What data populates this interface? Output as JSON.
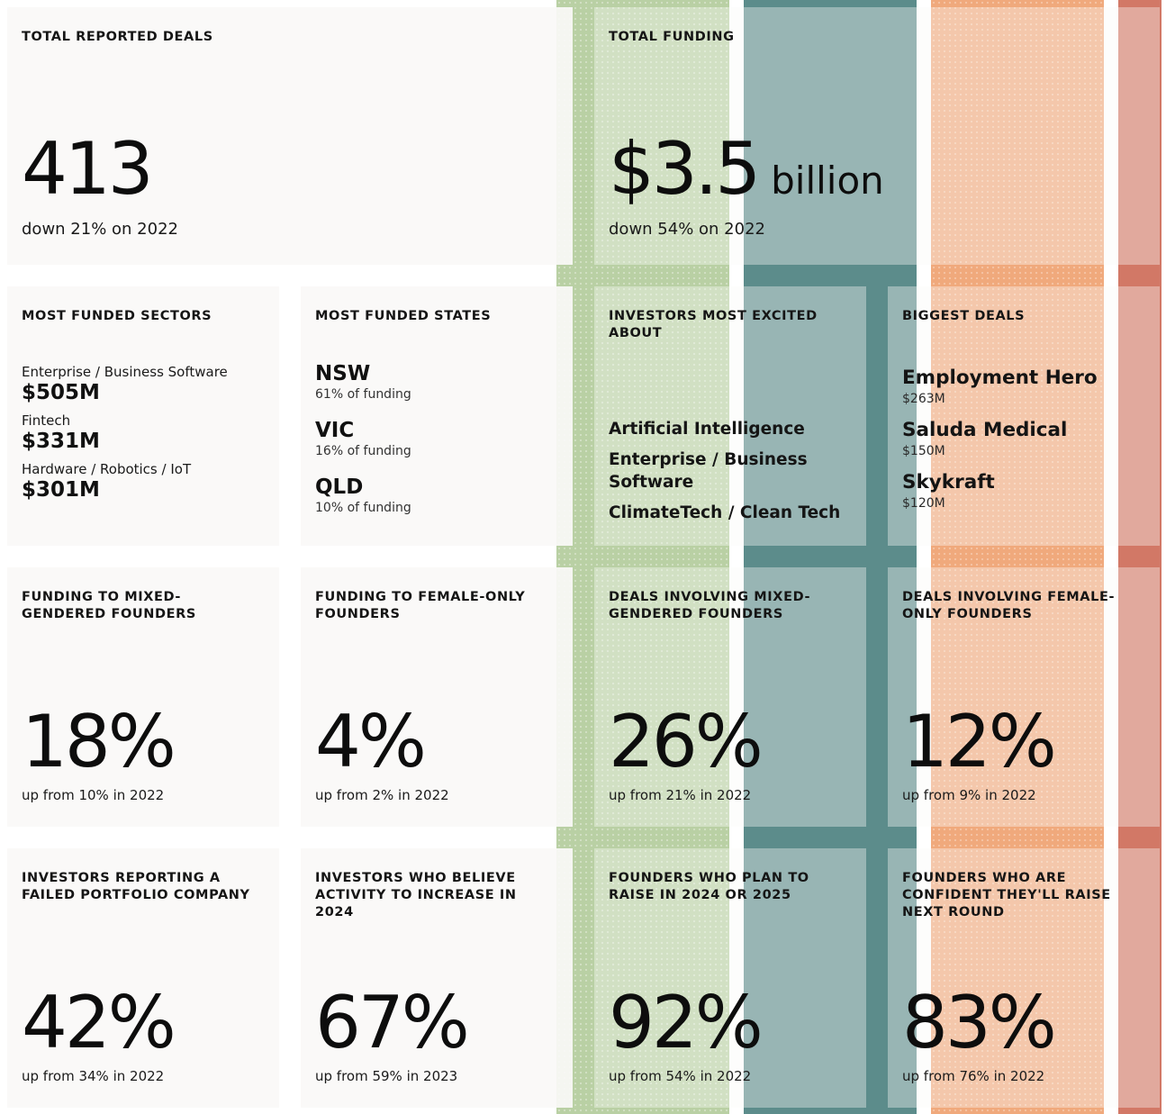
{
  "colors": {
    "stripe_green": "#b9d0a4",
    "stripe_teal": "#5c8c8b",
    "stripe_orange": "#f0a97c",
    "stripe_red": "#d27866",
    "card_background": "#faf9f7"
  },
  "total_deals": {
    "label": "TOTAL REPORTED DEALS",
    "value": "413",
    "change": "down 21% on 2022"
  },
  "total_funding": {
    "label": "TOTAL FUNDING",
    "value": "$3.5",
    "unit": "billion",
    "change": "down 54% on 2022"
  },
  "sectors": {
    "label": "MOST FUNDED SECTORS",
    "items": [
      {
        "name": "Enterprise / Business Software",
        "amount": "$505M"
      },
      {
        "name": "Fintech",
        "amount": "$331M"
      },
      {
        "name": "Hardware / Robotics / IoT",
        "amount": "$301M"
      }
    ]
  },
  "states": {
    "label": "MOST FUNDED STATES",
    "items": [
      {
        "name": "NSW",
        "share": "61% of funding"
      },
      {
        "name": "VIC",
        "share": "16% of funding"
      },
      {
        "name": "QLD",
        "share": "10% of funding"
      }
    ]
  },
  "excited": {
    "label": "INVESTORS MOST EXCITED ABOUT",
    "items": [
      "Artificial Intelligence",
      "Enterprise / Business Software",
      "ClimateTech / Clean Tech"
    ]
  },
  "biggest_deals": {
    "label": "BIGGEST DEALS",
    "items": [
      {
        "name": "Employment Hero",
        "amount": "$263M"
      },
      {
        "name": "Saluda Medical",
        "amount": "$150M"
      },
      {
        "name": "Skykraft",
        "amount": "$120M"
      }
    ]
  },
  "stats_row1": [
    {
      "label": "FUNDING TO MIXED-GENDERED FOUNDERS",
      "value": "18%",
      "change": "up from 10% in 2022"
    },
    {
      "label": "FUNDING TO FEMALE-ONLY FOUNDERS",
      "value": "4%",
      "change": "up from 2% in 2022"
    },
    {
      "label": "DEALS INVOLVING MIXED-GENDERED FOUNDERS",
      "value": "26%",
      "change": "up from 21% in 2022"
    },
    {
      "label": "DEALS INVOLVING FEMALE-ONLY FOUNDERS",
      "value": "12%",
      "change": "up from 9% in 2022"
    }
  ],
  "stats_row2": [
    {
      "label": "INVESTORS REPORTING A FAILED PORTFOLIO COMPANY",
      "value": "42%",
      "change": "up from 34% in 2022"
    },
    {
      "label": "INVESTORS WHO BELIEVE ACTIVITY TO INCREASE IN 2024",
      "value": "67%",
      "change": "up from 59% in 2023"
    },
    {
      "label": "FOUNDERS WHO PLAN TO RAISE IN 2024 OR 2025",
      "value": "92%",
      "change": "up from 54% in 2022"
    },
    {
      "label": "FOUNDERS WHO ARE CONFIDENT THEY'LL RAISE NEXT ROUND",
      "value": "83%",
      "change": "up from 76% in 2022"
    }
  ]
}
